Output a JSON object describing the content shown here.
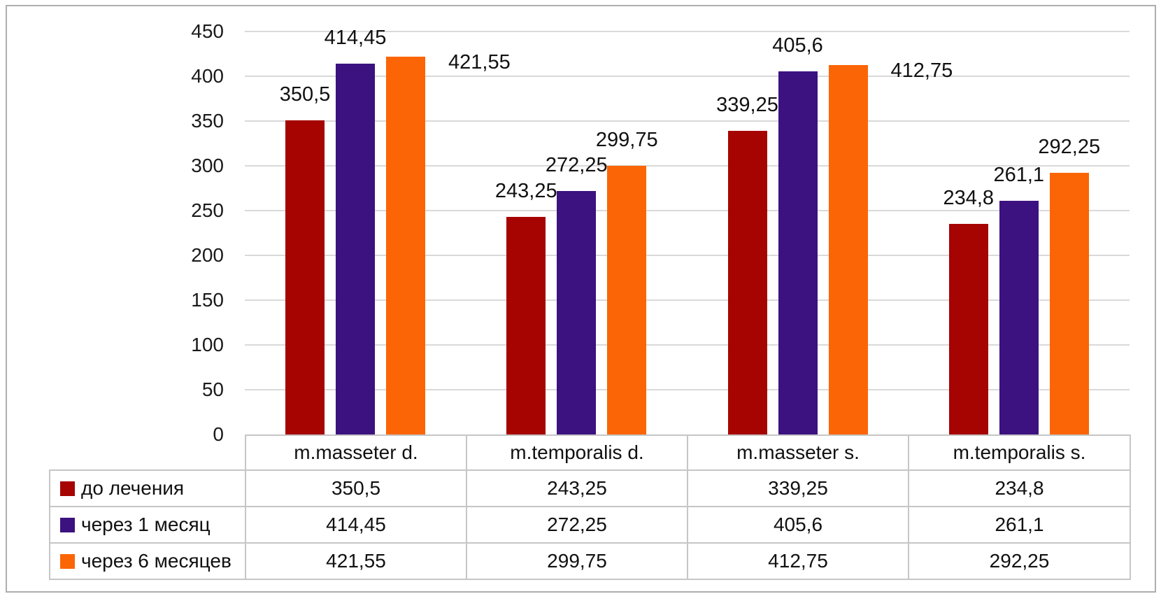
{
  "chart_data": {
    "type": "bar",
    "title": "",
    "xlabel": "",
    "ylabel": "",
    "categories": [
      "m.masseter d.",
      "m.temporalis d.",
      "m.masseter s.",
      "m.temporalis s."
    ],
    "series": [
      {
        "name": "до лечения",
        "color": "#a60400",
        "values": [
          350.5,
          243.25,
          339.25,
          234.8
        ],
        "labels": [
          "350,5",
          "243,25",
          "339,25",
          "234,8"
        ]
      },
      {
        "name": "через 1 месяц",
        "color": "#3c1180",
        "values": [
          414.45,
          272.25,
          405.6,
          261.1
        ],
        "labels": [
          "414,45",
          "272,25",
          "405,6",
          "261,1"
        ]
      },
      {
        "name": "через 6 месяцев",
        "color": "#fc6505",
        "values": [
          421.55,
          299.75,
          412.75,
          292.25
        ],
        "labels": [
          "421,55",
          "299,75",
          "412,75",
          "292,25"
        ]
      }
    ],
    "ylim": [
      0,
      450
    ],
    "ytick_step": 50,
    "ytick_labels": [
      "0",
      "50",
      "100",
      "150",
      "200",
      "250",
      "300",
      "350",
      "400",
      "450"
    ],
    "grid": true,
    "legend_position": "data-table-left-column",
    "data_table_shown": true,
    "label_placement_overrides": [
      {
        "category_index": 0,
        "series_index": 2,
        "position": "right-of-bar"
      },
      {
        "category_index": 2,
        "series_index": 2,
        "position": "right-of-bar"
      }
    ]
  },
  "colors": {
    "background": "#ffffff",
    "frame_border": "#aeaeae",
    "gridline": "#d9d9d9",
    "table_border": "#c6c6c6",
    "text": "#1a1a1a"
  }
}
